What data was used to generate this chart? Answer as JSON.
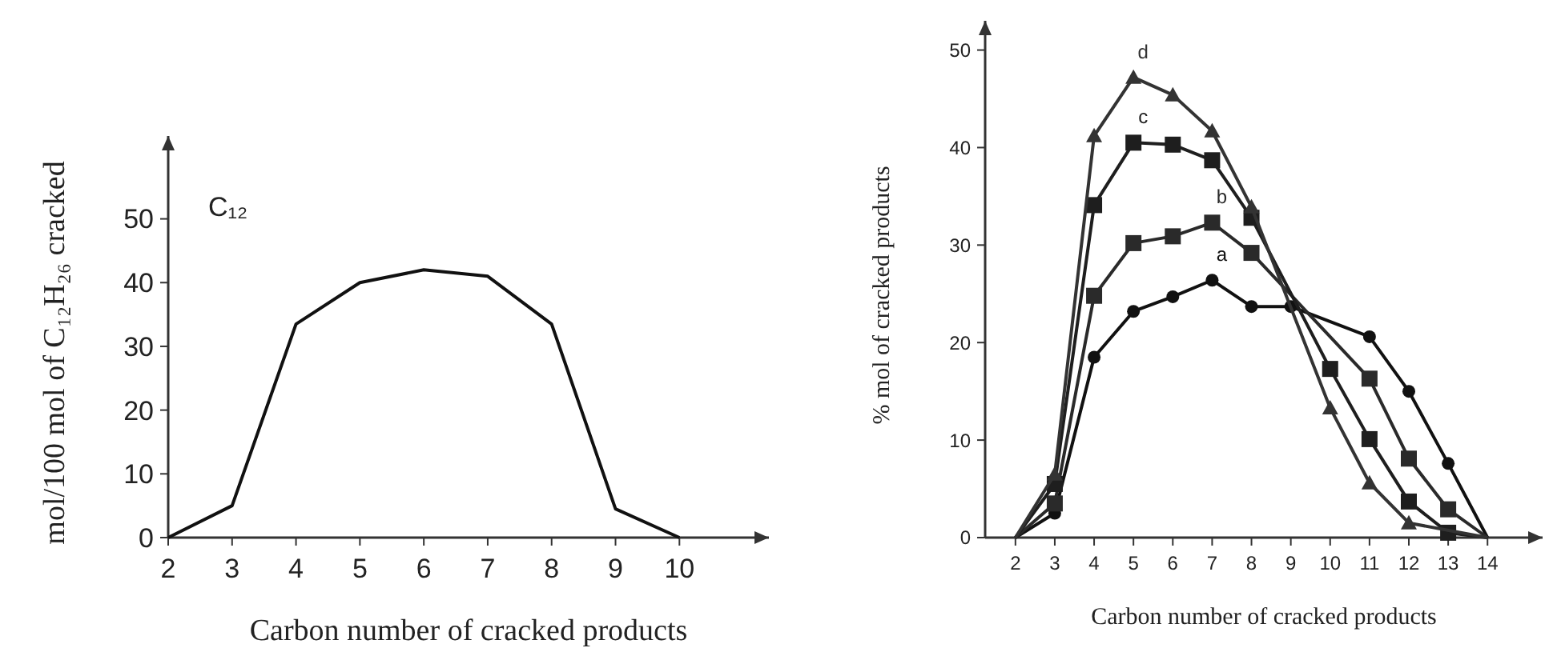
{
  "chart_data": [
    {
      "type": "line",
      "xlabel": "Carbon number of cracked products",
      "ylabel": "mol/100 mol of C₁₂H₂₆ cracked",
      "annotations": [
        "C₁₂"
      ],
      "x": [
        2,
        3,
        4,
        5,
        6,
        7,
        8,
        9,
        10
      ],
      "xlim": [
        2,
        11.4
      ],
      "xticks": [
        2,
        3,
        4,
        5,
        6,
        7,
        8,
        9,
        10
      ],
      "ylim": [
        0,
        63
      ],
      "yticks": [
        0,
        10,
        20,
        30,
        40,
        50
      ],
      "grid": false,
      "marker": "none",
      "series": [
        {
          "color": "#111111",
          "values": [
            0,
            5,
            33.5,
            40,
            42,
            41,
            33.5,
            4.5,
            0
          ]
        }
      ]
    },
    {
      "type": "line",
      "xlabel": "Carbon number of cracked products",
      "ylabel": "% mol of cracked products",
      "xlim": [
        1.23,
        15.4
      ],
      "xticks": [
        2,
        3,
        4,
        5,
        6,
        7,
        8,
        9,
        10,
        11,
        12,
        13,
        14
      ],
      "ylim": [
        0,
        53
      ],
      "yticks": [
        {
          "value": 0,
          "label": "0"
        },
        10,
        20,
        30,
        40,
        50
      ],
      "grid": false,
      "series": [
        {
          "name": "a",
          "color": "#111111",
          "marker": "circle",
          "x": [
            2,
            3,
            4,
            5,
            6,
            7,
            8,
            9,
            11,
            12,
            13,
            14
          ],
          "values": [
            0,
            2.5,
            18.5,
            23.2,
            24.7,
            26.4,
            23.7,
            23.7,
            20.6,
            15,
            7.6,
            0
          ]
        },
        {
          "name": "b",
          "color": "#2a2a2a",
          "marker": "square",
          "x": [
            2,
            3,
            4,
            5,
            6,
            7,
            8,
            11,
            12,
            13,
            14
          ],
          "values": [
            0,
            3.5,
            24.8,
            30.2,
            30.9,
            32.3,
            29.2,
            16.3,
            8.1,
            2.9,
            0
          ]
        },
        {
          "name": "c",
          "color": "#1e1e1e",
          "marker": "square",
          "x": [
            2,
            3,
            4,
            5,
            6,
            7,
            8,
            10,
            11,
            12,
            13,
            14
          ],
          "values": [
            0,
            5.5,
            34.1,
            40.5,
            40.3,
            38.7,
            32.8,
            17.3,
            10.1,
            3.7,
            0.5,
            0
          ]
        },
        {
          "name": "d",
          "color": "#333333",
          "marker": "triangle",
          "x": [
            2,
            3,
            4,
            5,
            6,
            7,
            8,
            10,
            11,
            12,
            14
          ],
          "values": [
            0,
            6.5,
            41.2,
            47.2,
            45.4,
            41.7,
            33.9,
            13.3,
            5.6,
            1.5,
            0
          ]
        }
      ]
    }
  ]
}
